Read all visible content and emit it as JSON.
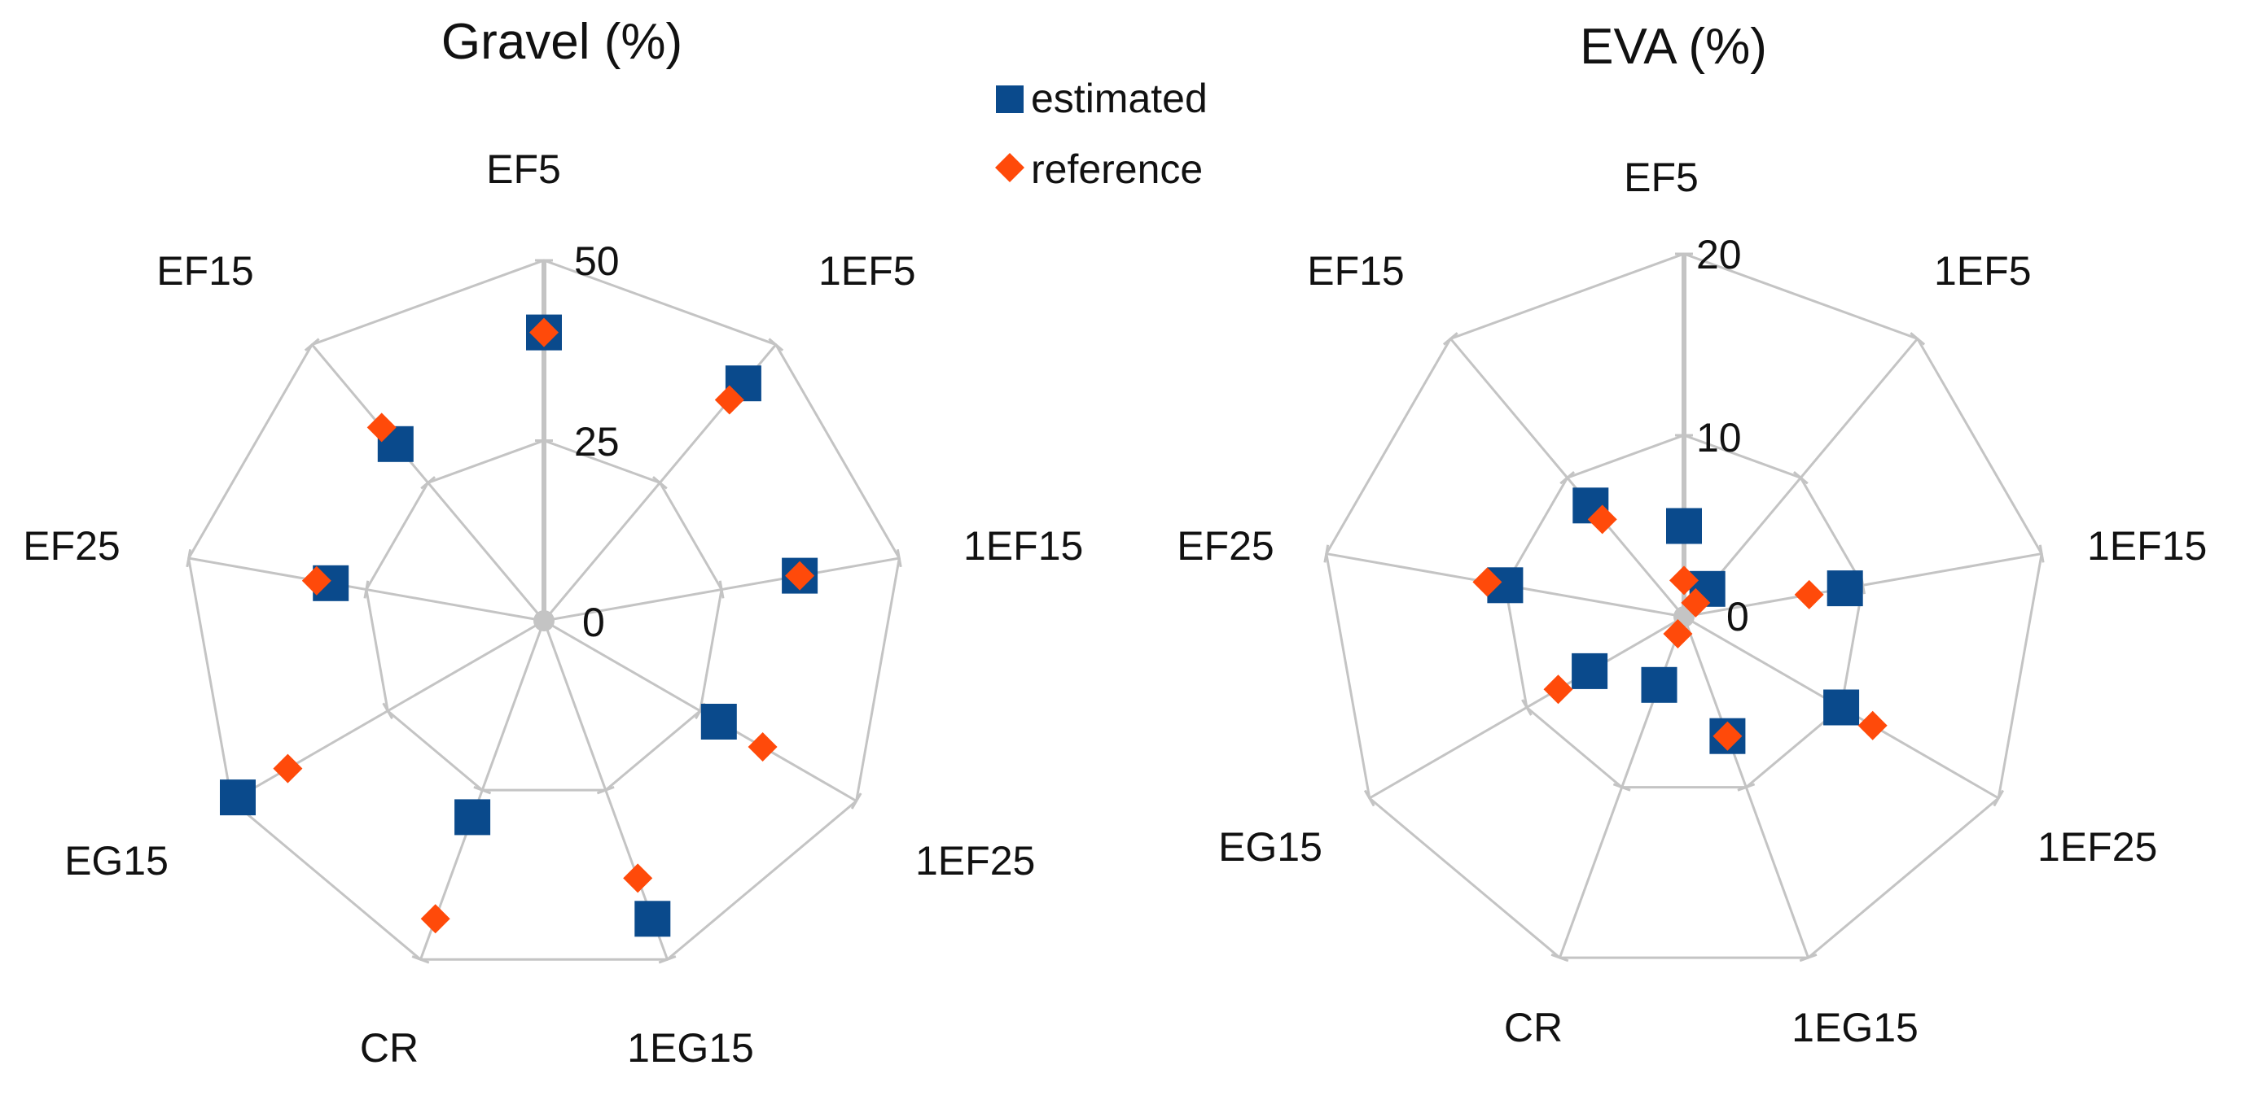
{
  "legend": {
    "items": [
      {
        "label": "estimated",
        "color": "#0a4a8c",
        "marker": "square"
      },
      {
        "label": "reference",
        "color": "#ff4a0a",
        "marker": "diamond"
      }
    ]
  },
  "chart_data": [
    {
      "type": "radar",
      "title": "Gravel (%)",
      "categories": [
        "EF5",
        "1EF5",
        "1EF15",
        "1EF25",
        "1EG15",
        "CR",
        "EG15",
        "EF25",
        "EF15"
      ],
      "rmin": 0,
      "rmax": 50,
      "ticks": [
        0,
        25,
        50
      ],
      "tick_labels": [
        "0",
        "25",
        "50"
      ],
      "series": [
        {
          "name": "estimated",
          "values": [
            40,
            43,
            36,
            28,
            44,
            29,
            49,
            30,
            32
          ]
        },
        {
          "name": "reference",
          "values": [
            40,
            40,
            36,
            35,
            38,
            44,
            41,
            32,
            35
          ]
        }
      ]
    },
    {
      "type": "radar",
      "title": "EVA (%)",
      "categories": [
        "EF5",
        "1EF5",
        "1EF15",
        "1EF25",
        "1EG15",
        "CR",
        "EG15",
        "EF25",
        "EF15"
      ],
      "rmin": 0,
      "rmax": 20,
      "ticks": [
        0,
        10,
        20
      ],
      "tick_labels": [
        "0",
        "10",
        "20"
      ],
      "series": [
        {
          "name": "estimated",
          "values": [
            5,
            2,
            9,
            10,
            7,
            4,
            6,
            10,
            8
          ]
        },
        {
          "name": "reference",
          "values": [
            2,
            1,
            7,
            12,
            7,
            1,
            8,
            11,
            7
          ]
        }
      ]
    }
  ]
}
